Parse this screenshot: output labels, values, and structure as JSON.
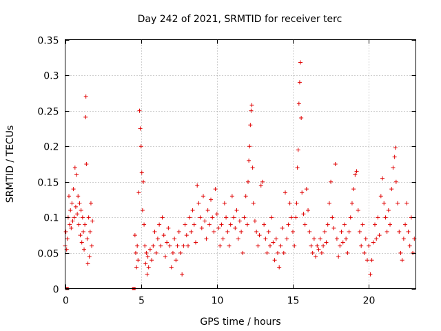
{
  "chart_data": {
    "type": "scatter",
    "title": "Day 242 of 2021, SRMTID for receiver terc",
    "xlabel": "GPS time / hours",
    "ylabel": "SRMTID / TECUs",
    "xlim": [
      0,
      23.1
    ],
    "ylim": [
      0,
      0.35
    ],
    "xticks": [
      0,
      5,
      10,
      15,
      20
    ],
    "xtick_labels": [
      "0",
      "5",
      "10",
      "15",
      "20"
    ],
    "yticks": [
      0,
      0.05,
      0.1,
      0.15,
      0.2,
      0.25,
      0.3,
      0.35
    ],
    "ytick_labels": [
      "0",
      "0.05",
      "0.1",
      "0.15",
      "0.2",
      "0.25",
      "0.3",
      "0.35"
    ],
    "grid": true,
    "marker": "+",
    "marker_color": "#e00000",
    "series": [
      {
        "name": "SRMTID",
        "points": [
          [
            0.0,
            0.06
          ],
          [
            0.05,
            0.08
          ],
          [
            0.1,
            0.055
          ],
          [
            0.15,
            0.07
          ],
          [
            0.2,
            0.1
          ],
          [
            0.25,
            0.13
          ],
          [
            0.3,
            0.09
          ],
          [
            0.35,
            0.11
          ],
          [
            0.4,
            0.085
          ],
          [
            0.45,
            0.12
          ],
          [
            0.5,
            0.095
          ],
          [
            0.55,
            0.14
          ],
          [
            0.6,
            0.1
          ],
          [
            0.65,
            0.17
          ],
          [
            0.7,
            0.115
          ],
          [
            0.75,
            0.16
          ],
          [
            0.8,
            0.105
          ],
          [
            0.85,
            0.13
          ],
          [
            0.9,
            0.09
          ],
          [
            0.95,
            0.12
          ],
          [
            1.0,
            0.075
          ],
          [
            1.05,
            0.11
          ],
          [
            1.1,
            0.065
          ],
          [
            1.15,
            0.1
          ],
          [
            1.2,
            0.08
          ],
          [
            1.25,
            0.055
          ],
          [
            1.3,
            0.09
          ],
          [
            1.35,
            0.241
          ],
          [
            1.37,
            0.27
          ],
          [
            1.4,
            0.175
          ],
          [
            1.45,
            0.07
          ],
          [
            1.5,
            0.035
          ],
          [
            1.55,
            0.1
          ],
          [
            1.6,
            0.045
          ],
          [
            1.65,
            0.08
          ],
          [
            1.7,
            0.12
          ],
          [
            1.75,
            0.06
          ],
          [
            1.8,
            0.095
          ],
          [
            0.1,
            0.0
          ],
          [
            0.15,
            0.0
          ],
          [
            4.5,
            0.0
          ],
          [
            4.55,
            0.0
          ],
          [
            4.6,
            0.075
          ],
          [
            4.65,
            0.05
          ],
          [
            4.7,
            0.03
          ],
          [
            4.75,
            0.06
          ],
          [
            4.8,
            0.04
          ],
          [
            4.85,
            0.135
          ],
          [
            4.9,
            0.25
          ],
          [
            4.95,
            0.225
          ],
          [
            5.0,
            0.2
          ],
          [
            5.05,
            0.163
          ],
          [
            5.1,
            0.11
          ],
          [
            5.15,
            0.15
          ],
          [
            5.2,
            0.09
          ],
          [
            5.25,
            0.06
          ],
          [
            5.3,
            0.035
          ],
          [
            5.35,
            0.05
          ],
          [
            5.4,
            0.02
          ],
          [
            5.45,
            0.045
          ],
          [
            5.5,
            0.03
          ],
          [
            5.6,
            0.055
          ],
          [
            5.7,
            0.04
          ],
          [
            5.8,
            0.06
          ],
          [
            5.9,
            0.08
          ],
          [
            6.0,
            0.05
          ],
          [
            6.1,
            0.07
          ],
          [
            6.2,
            0.09
          ],
          [
            6.3,
            0.06
          ],
          [
            6.4,
            0.1
          ],
          [
            6.5,
            0.075
          ],
          [
            6.6,
            0.045
          ],
          [
            6.7,
            0.065
          ],
          [
            6.8,
            0.085
          ],
          [
            6.9,
            0.06
          ],
          [
            7.0,
            0.03
          ],
          [
            7.1,
            0.05
          ],
          [
            7.2,
            0.07
          ],
          [
            7.3,
            0.04
          ],
          [
            7.4,
            0.06
          ],
          [
            7.5,
            0.08
          ],
          [
            7.6,
            0.05
          ],
          [
            7.7,
            0.02
          ],
          [
            7.8,
            0.06
          ],
          [
            7.9,
            0.09
          ],
          [
            8.0,
            0.075
          ],
          [
            8.1,
            0.06
          ],
          [
            8.2,
            0.1
          ],
          [
            8.3,
            0.08
          ],
          [
            8.4,
            0.11
          ],
          [
            8.5,
            0.09
          ],
          [
            8.6,
            0.065
          ],
          [
            8.7,
            0.145
          ],
          [
            8.8,
            0.12
          ],
          [
            8.9,
            0.1
          ],
          [
            9.0,
            0.085
          ],
          [
            9.1,
            0.13
          ],
          [
            9.2,
            0.095
          ],
          [
            9.3,
            0.07
          ],
          [
            9.4,
            0.11
          ],
          [
            9.5,
            0.09
          ],
          [
            9.6,
            0.125
          ],
          [
            9.7,
            0.1
          ],
          [
            9.8,
            0.08
          ],
          [
            9.9,
            0.14
          ],
          [
            10.0,
            0.105
          ],
          [
            10.1,
            0.085
          ],
          [
            10.2,
            0.06
          ],
          [
            10.3,
            0.09
          ],
          [
            10.4,
            0.07
          ],
          [
            10.5,
            0.12
          ],
          [
            10.6,
            0.1
          ],
          [
            10.7,
            0.08
          ],
          [
            10.8,
            0.06
          ],
          [
            10.9,
            0.09
          ],
          [
            11.0,
            0.13
          ],
          [
            11.1,
            0.1
          ],
          [
            11.2,
            0.085
          ],
          [
            11.3,
            0.11
          ],
          [
            11.4,
            0.07
          ],
          [
            11.5,
            0.095
          ],
          [
            11.6,
            0.08
          ],
          [
            11.7,
            0.05
          ],
          [
            11.8,
            0.1
          ],
          [
            11.9,
            0.13
          ],
          [
            12.0,
            0.09
          ],
          [
            12.05,
            0.15
          ],
          [
            12.1,
            0.18
          ],
          [
            12.15,
            0.2
          ],
          [
            12.2,
            0.23
          ],
          [
            12.25,
            0.25
          ],
          [
            12.3,
            0.258
          ],
          [
            12.35,
            0.17
          ],
          [
            12.4,
            0.12
          ],
          [
            12.5,
            0.095
          ],
          [
            12.6,
            0.08
          ],
          [
            12.7,
            0.06
          ],
          [
            12.8,
            0.075
          ],
          [
            12.9,
            0.145
          ],
          [
            13.0,
            0.15
          ],
          [
            13.1,
            0.09
          ],
          [
            13.2,
            0.07
          ],
          [
            13.3,
            0.05
          ],
          [
            13.4,
            0.08
          ],
          [
            13.5,
            0.06
          ],
          [
            13.6,
            0.1
          ],
          [
            13.7,
            0.065
          ],
          [
            13.8,
            0.04
          ],
          [
            13.9,
            0.07
          ],
          [
            14.0,
            0.05
          ],
          [
            14.1,
            0.03
          ],
          [
            14.2,
            0.06
          ],
          [
            14.3,
            0.085
          ],
          [
            14.4,
            0.05
          ],
          [
            14.5,
            0.135
          ],
          [
            14.6,
            0.07
          ],
          [
            14.7,
            0.09
          ],
          [
            14.8,
            0.12
          ],
          [
            14.9,
            0.1
          ],
          [
            15.0,
            0.08
          ],
          [
            15.1,
            0.06
          ],
          [
            15.2,
            0.1
          ],
          [
            15.25,
            0.12
          ],
          [
            15.3,
            0.17
          ],
          [
            15.35,
            0.195
          ],
          [
            15.4,
            0.26
          ],
          [
            15.45,
            0.29
          ],
          [
            15.5,
            0.318
          ],
          [
            15.55,
            0.24
          ],
          [
            15.6,
            0.135
          ],
          [
            15.7,
            0.105
          ],
          [
            15.8,
            0.09
          ],
          [
            15.9,
            0.14
          ],
          [
            16.0,
            0.11
          ],
          [
            16.1,
            0.08
          ],
          [
            16.2,
            0.06
          ],
          [
            16.3,
            0.05
          ],
          [
            16.4,
            0.07
          ],
          [
            16.5,
            0.045
          ],
          [
            16.6,
            0.06
          ],
          [
            16.7,
            0.055
          ],
          [
            16.8,
            0.07
          ],
          [
            16.9,
            0.05
          ],
          [
            17.0,
            0.06
          ],
          [
            17.1,
            0.08
          ],
          [
            17.2,
            0.065
          ],
          [
            17.3,
            0.09
          ],
          [
            17.4,
            0.12
          ],
          [
            17.5,
            0.15
          ],
          [
            17.6,
            0.1
          ],
          [
            17.7,
            0.085
          ],
          [
            17.8,
            0.175
          ],
          [
            17.9,
            0.07
          ],
          [
            18.0,
            0.045
          ],
          [
            18.1,
            0.06
          ],
          [
            18.2,
            0.08
          ],
          [
            18.3,
            0.065
          ],
          [
            18.4,
            0.09
          ],
          [
            18.5,
            0.07
          ],
          [
            18.6,
            0.05
          ],
          [
            18.7,
            0.08
          ],
          [
            18.8,
            0.1
          ],
          [
            18.9,
            0.12
          ],
          [
            19.0,
            0.14
          ],
          [
            19.1,
            0.16
          ],
          [
            19.2,
            0.165
          ],
          [
            19.3,
            0.11
          ],
          [
            19.4,
            0.08
          ],
          [
            19.5,
            0.06
          ],
          [
            19.6,
            0.09
          ],
          [
            19.7,
            0.05
          ],
          [
            19.8,
            0.07
          ],
          [
            19.9,
            0.04
          ],
          [
            20.0,
            0.06
          ],
          [
            20.1,
            0.02
          ],
          [
            20.2,
            0.04
          ],
          [
            20.3,
            0.065
          ],
          [
            20.4,
            0.09
          ],
          [
            20.5,
            0.07
          ],
          [
            20.6,
            0.1
          ],
          [
            20.7,
            0.075
          ],
          [
            20.8,
            0.13
          ],
          [
            20.9,
            0.155
          ],
          [
            21.0,
            0.12
          ],
          [
            21.1,
            0.1
          ],
          [
            21.2,
            0.08
          ],
          [
            21.3,
            0.11
          ],
          [
            21.4,
            0.09
          ],
          [
            21.5,
            0.14
          ],
          [
            21.6,
            0.17
          ],
          [
            21.7,
            0.185
          ],
          [
            21.75,
            0.198
          ],
          [
            21.8,
            0.15
          ],
          [
            21.9,
            0.12
          ],
          [
            22.0,
            0.08
          ],
          [
            22.1,
            0.05
          ],
          [
            22.2,
            0.04
          ],
          [
            22.3,
            0.07
          ],
          [
            22.4,
            0.09
          ],
          [
            22.5,
            0.12
          ],
          [
            22.6,
            0.08
          ],
          [
            22.7,
            0.06
          ],
          [
            22.8,
            0.1
          ],
          [
            22.9,
            0.05
          ],
          [
            23.0,
            0.07
          ]
        ]
      }
    ]
  }
}
